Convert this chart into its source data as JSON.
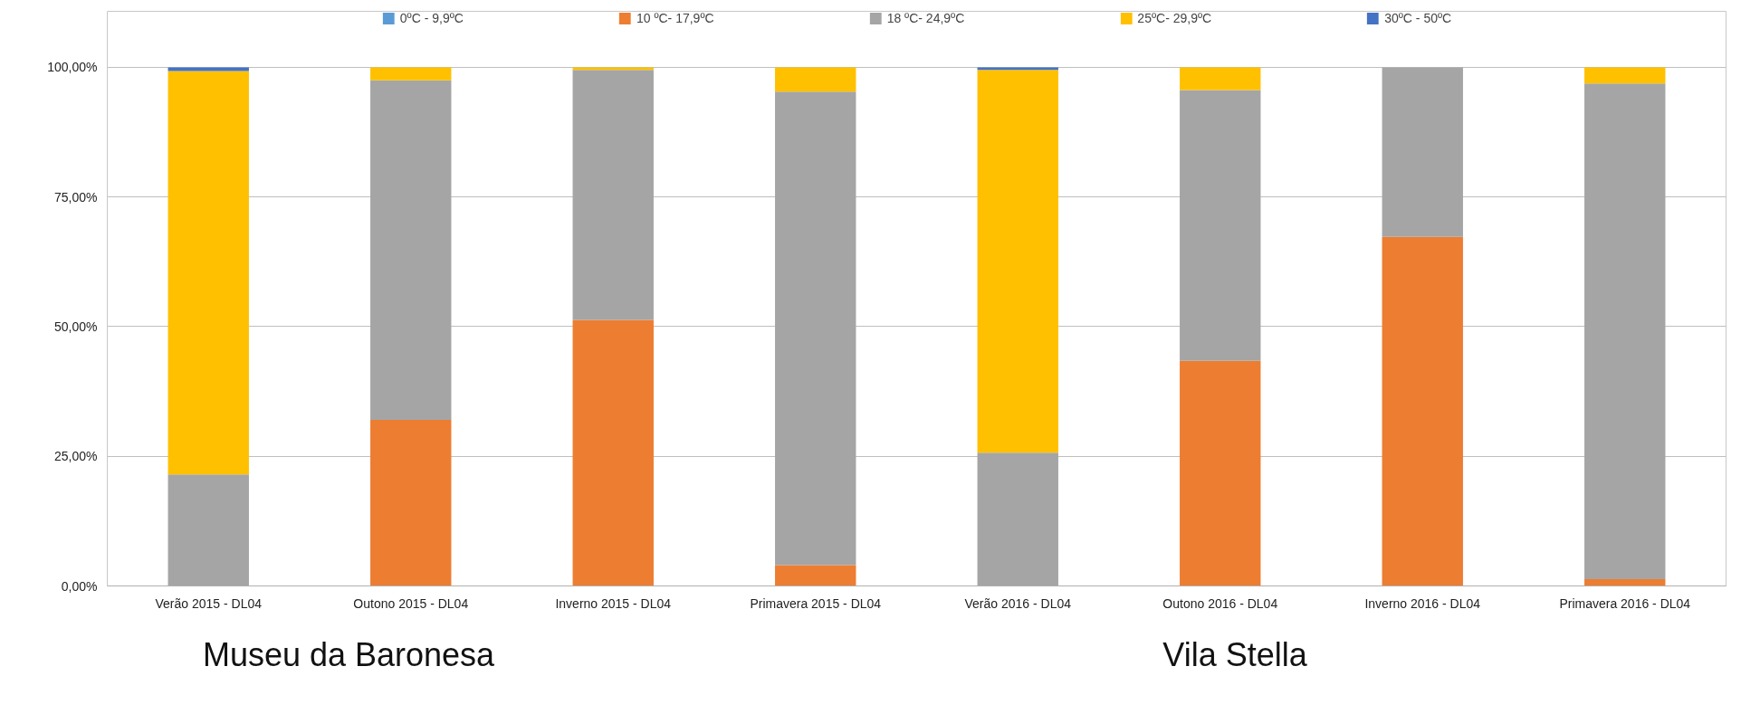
{
  "chart_data": {
    "type": "bar",
    "stacked": true,
    "categories": [
      "Verão 2015 - DL04",
      "Outono 2015 - DL04",
      "Inverno 2015 - DL04",
      "Primavera 2015 - DL04",
      "Verão 2016 - DL04",
      "Outono 2016 - DL04",
      "Inverno 2016 - DL04",
      "Primavera 2016 - DL04"
    ],
    "series": [
      {
        "name": "0ºC - 9,9ºC",
        "color": "#5b9bd5",
        "values": [
          0,
          0,
          0,
          0,
          0,
          0,
          0,
          0
        ]
      },
      {
        "name": "10 ºC- 17,9ºC",
        "color": "#ed7d31",
        "values": [
          0,
          32,
          51.3,
          4,
          0,
          43.4,
          67.3,
          1.3
        ]
      },
      {
        "name": "18 ºC- 24,9ºC",
        "color": "#a5a5a5",
        "values": [
          21.5,
          65.5,
          48.2,
          91.3,
          25.7,
          52.2,
          32.7,
          95.6
        ]
      },
      {
        "name": "25ºC- 29,9ºC",
        "color": "#ffc000",
        "values": [
          77.8,
          2.5,
          0.5,
          4.7,
          73.8,
          4.4,
          0,
          3.1
        ]
      },
      {
        "name": "30ºC - 50ºC",
        "color": "#4472c4",
        "values": [
          0.7,
          0,
          0,
          0,
          0.5,
          0,
          0,
          0
        ]
      }
    ],
    "ylim": [
      0,
      110.8
    ],
    "yticks": [
      {
        "value": 0,
        "label": "0,00%"
      },
      {
        "value": 25,
        "label": "25,00%"
      },
      {
        "value": 50,
        "label": "50,00%"
      },
      {
        "value": 75,
        "label": "75,00%"
      },
      {
        "value": 100,
        "label": "100,00%"
      }
    ],
    "grid": "y",
    "legend": "top",
    "annotations": [
      "Museu da Baronesa",
      "Vila Stella"
    ]
  }
}
